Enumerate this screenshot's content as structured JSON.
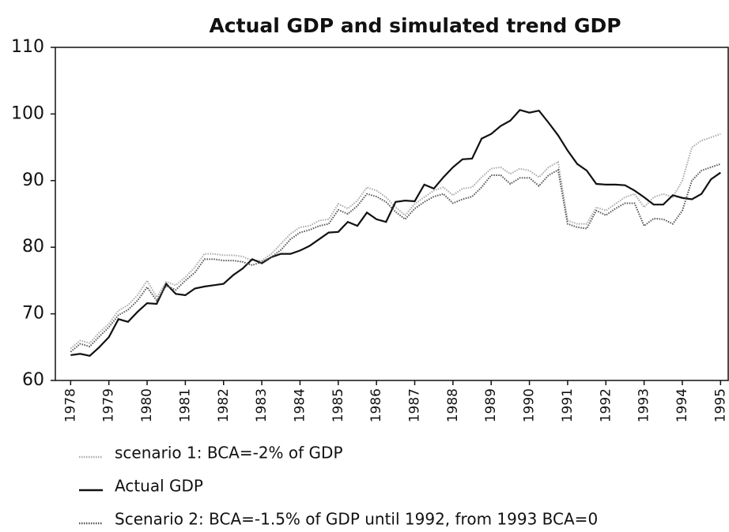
{
  "chart_data": {
    "type": "line",
    "title": "Actual GDP and simulated trend GDP",
    "x": [
      1978,
      1978.25,
      1978.5,
      1978.75,
      1979,
      1979.25,
      1979.5,
      1979.75,
      1980,
      1980.25,
      1980.5,
      1980.75,
      1981,
      1981.25,
      1981.5,
      1981.75,
      1982,
      1982.25,
      1982.5,
      1982.75,
      1983,
      1983.25,
      1983.5,
      1983.75,
      1984,
      1984.25,
      1984.5,
      1984.75,
      1985,
      1985.25,
      1985.5,
      1985.75,
      1986,
      1986.25,
      1986.5,
      1986.75,
      1987,
      1987.25,
      1987.5,
      1987.75,
      1988,
      1988.25,
      1988.5,
      1988.75,
      1989,
      1989.25,
      1989.5,
      1989.75,
      1990,
      1990.25,
      1990.5,
      1990.75,
      1991,
      1991.25,
      1991.5,
      1991.75,
      1992,
      1992.25,
      1992.5,
      1992.75,
      1993,
      1993.25,
      1993.5,
      1993.75,
      1994,
      1994.25,
      1994.5,
      1994.75,
      1995
    ],
    "series": [
      {
        "name": "scenario 1: BCA=-2% of GDP",
        "color": "#aaaaaa",
        "style": "dotted",
        "values": [
          64.8,
          66.0,
          65.6,
          67.2,
          68.5,
          70.5,
          71.3,
          72.8,
          75.0,
          72.5,
          74.8,
          74.3,
          75.5,
          77.0,
          79.0,
          79.0,
          78.8,
          78.8,
          78.6,
          78.0,
          78.0,
          79.0,
          80.5,
          82.0,
          83.0,
          83.2,
          84.0,
          84.2,
          86.5,
          85.8,
          87.0,
          89.0,
          88.5,
          87.5,
          86.0,
          84.8,
          86.5,
          87.5,
          88.5,
          89.0,
          87.8,
          88.8,
          89.0,
          90.5,
          91.8,
          92.0,
          91.0,
          91.8,
          91.5,
          90.5,
          92.0,
          92.8,
          84.0,
          83.5,
          83.5,
          86.0,
          85.5,
          86.5,
          87.5,
          88.0,
          86.0,
          87.5,
          88.0,
          87.5,
          90.0,
          95.0,
          96.0,
          96.5,
          97.0
        ]
      },
      {
        "name": "Actual GDP",
        "color": "#111111",
        "style": "solid",
        "values": [
          63.8,
          64.0,
          63.7,
          65.0,
          66.5,
          69.2,
          68.8,
          70.3,
          71.6,
          71.5,
          74.5,
          73.0,
          72.8,
          73.8,
          74.1,
          74.3,
          74.5,
          75.8,
          76.8,
          78.2,
          77.6,
          78.5,
          79.0,
          79.0,
          79.5,
          80.2,
          81.2,
          82.2,
          82.3,
          83.8,
          83.2,
          85.2,
          84.2,
          83.8,
          86.8,
          87.0,
          86.9,
          89.4,
          88.8,
          90.5,
          92.0,
          93.2,
          93.3,
          96.3,
          97.0,
          98.2,
          99.0,
          100.6,
          100.2,
          100.5,
          98.7,
          96.8,
          94.5,
          92.5,
          91.5,
          89.5,
          89.4,
          89.4,
          89.3,
          88.5,
          87.5,
          86.4,
          86.4,
          87.8,
          87.4,
          87.2,
          88.0,
          90.2,
          91.2
        ]
      },
      {
        "name": "Scenario 2: BCA=-1.5% of GDP until 1992, from 1993 BCA=0",
        "color": "#555555",
        "style": "dotted",
        "values": [
          64.3,
          65.5,
          65.1,
          66.6,
          68.0,
          69.8,
          70.6,
          72.0,
          74.0,
          72.0,
          74.2,
          73.6,
          75.0,
          76.2,
          78.2,
          78.2,
          78.0,
          78.0,
          77.8,
          77.3,
          77.8,
          78.5,
          79.6,
          81.2,
          82.2,
          82.6,
          83.2,
          83.5,
          85.6,
          85.0,
          86.2,
          88.0,
          87.6,
          86.8,
          85.3,
          84.2,
          85.8,
          86.8,
          87.6,
          88.0,
          86.6,
          87.2,
          87.6,
          89.0,
          90.8,
          90.8,
          89.5,
          90.4,
          90.4,
          89.2,
          90.8,
          91.6,
          83.5,
          83.0,
          82.8,
          85.5,
          84.8,
          85.8,
          86.6,
          86.6,
          83.2,
          84.3,
          84.2,
          83.5,
          85.5,
          90.0,
          91.5,
          92.0,
          92.5
        ]
      }
    ],
    "xlim": [
      1977.6,
      1995.2
    ],
    "xticks": [
      1978,
      1979,
      1980,
      1981,
      1982,
      1983,
      1984,
      1985,
      1986,
      1987,
      1988,
      1989,
      1990,
      1991,
      1992,
      1993,
      1994,
      1995
    ],
    "ylim": [
      60,
      110
    ],
    "yticks": [
      60,
      70,
      80,
      90,
      100,
      110
    ]
  }
}
